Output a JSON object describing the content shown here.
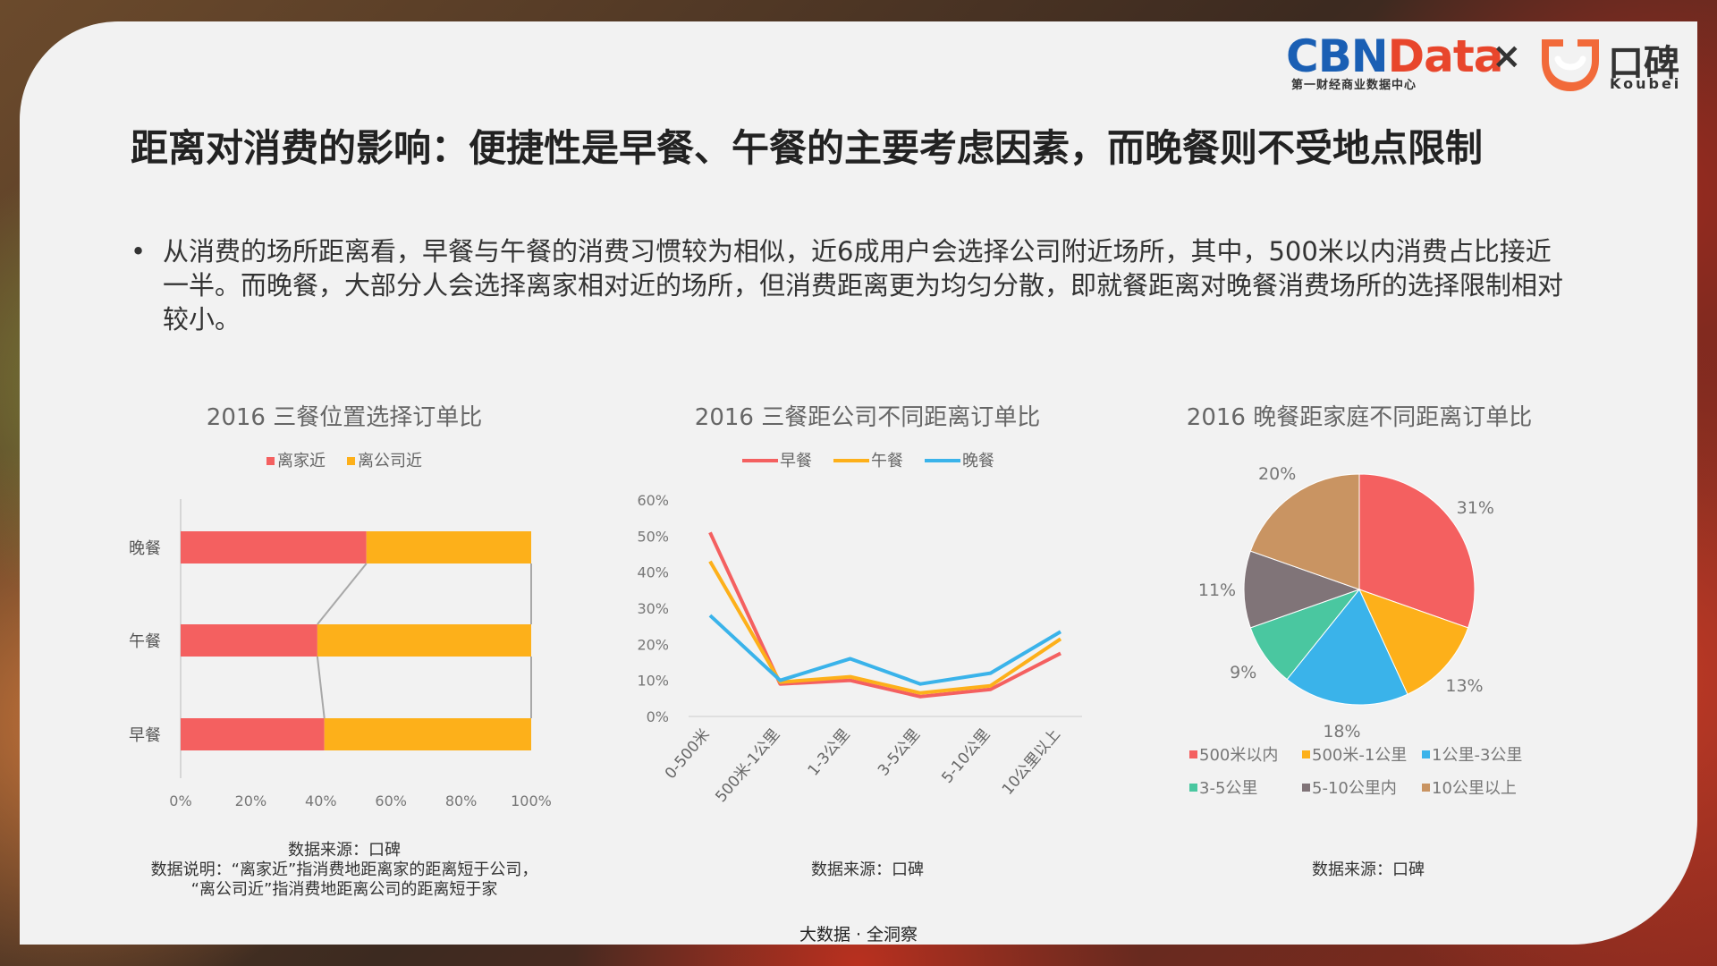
{
  "header": {
    "cbn_part1": "CBN",
    "cbn_part2": "Data",
    "cbn_sub": "第一财经商业数据中心",
    "times": "×",
    "koubei_cn": "口碑",
    "koubei_en": "Koubei"
  },
  "title": "距离对消费的影响：便捷性是早餐、午餐的主要考虑因素，而晚餐则不受地点限制",
  "bullet": {
    "dot": "•",
    "text": "从消费的场所距离看，早餐与午餐的消费习惯较为相似，近6成用户会选择公司附近场所，其中，500米以内消费占比接近一半。而晚餐，大部分人会选择离家相对近的场所，但消费距离更为均匀分散，即就餐距离对晚餐消费场所的选择限制相对较小。"
  },
  "chart1": {
    "source_line1": "数据来源：口碑",
    "source_line2": "数据说明：“离家近”指消费地距离家的距离短于公司，",
    "source_line3": "“离公司近”指消费地距离公司的距离短于家"
  },
  "chart2": {
    "source": "数据来源：口碑"
  },
  "chart3": {
    "source": "数据来源：口碑"
  },
  "footer": "大数据 · 全洞察",
  "colors": {
    "red": "#f46060",
    "orange": "#fdb01a",
    "blue": "#3ab3ea",
    "teal": "#4ac7a0",
    "gray": "#807478",
    "tan": "#c99462"
  },
  "chart_data": [
    {
      "type": "bar",
      "orientation": "horizontal",
      "stacked": true,
      "title": "2016 三餐位置选择订单比",
      "categories": [
        "晚餐",
        "午餐",
        "早餐"
      ],
      "series": [
        {
          "name": "离家近",
          "color": "#f46060",
          "values": [
            0.53,
            0.39,
            0.41
          ]
        },
        {
          "name": "离公司近",
          "color": "#fdb01a",
          "values": [
            0.47,
            0.61,
            0.59
          ]
        }
      ],
      "xticks": [
        "0%",
        "20%",
        "40%",
        "60%",
        "80%",
        "100%"
      ],
      "xlim": [
        0,
        1
      ],
      "legend": "top"
    },
    {
      "type": "line",
      "title": "2016 三餐距公司不同距离订单比",
      "x": [
        "0-500米",
        "500米-1公里",
        "1-3公里",
        "3-5公里",
        "5-10公里",
        "10公里以上"
      ],
      "series": [
        {
          "name": "早餐",
          "color": "#f46060",
          "values": [
            0.51,
            0.09,
            0.1,
            0.055,
            0.075,
            0.175
          ]
        },
        {
          "name": "午餐",
          "color": "#fdb01a",
          "values": [
            0.43,
            0.095,
            0.11,
            0.065,
            0.085,
            0.215
          ]
        },
        {
          "name": "晚餐",
          "color": "#3ab3ea",
          "values": [
            0.28,
            0.1,
            0.16,
            0.09,
            0.12,
            0.235
          ]
        }
      ],
      "yticks": [
        "60%",
        "50%",
        "40%",
        "30%",
        "20%",
        "10%",
        "0%"
      ],
      "ylim": [
        0,
        0.6
      ],
      "legend": "top"
    },
    {
      "type": "pie",
      "title": "2016 晚餐距家庭不同距离订单比",
      "slices": [
        {
          "name": "500米以内",
          "value": 31,
          "label": "31%",
          "color": "#f46060"
        },
        {
          "name": "500米-1公里",
          "value": 13,
          "label": "13%",
          "color": "#fdb01a"
        },
        {
          "name": "1公里-3公里",
          "value": 18,
          "label": "18%",
          "color": "#3ab3ea"
        },
        {
          "name": "3-5公里",
          "value": 9,
          "label": "9%",
          "color": "#4ac7a0"
        },
        {
          "name": "5-10公里内",
          "value": 11,
          "label": "11%",
          "color": "#807478"
        },
        {
          "name": "10公里以上",
          "value": 20,
          "label": "20%",
          "color": "#c99462"
        }
      ],
      "legend": "bottom"
    }
  ]
}
